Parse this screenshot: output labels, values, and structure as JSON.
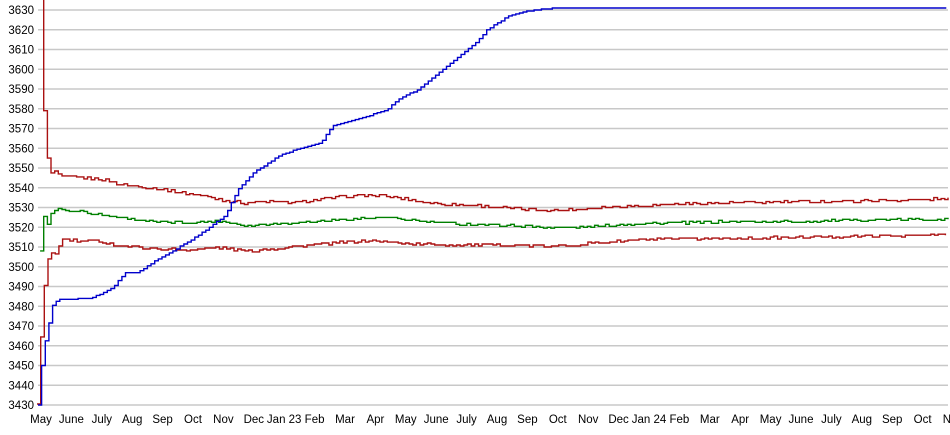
{
  "chart_data": {
    "type": "line",
    "title": "",
    "xlabel": "",
    "ylabel": "",
    "x_axis": {
      "labels": [
        "May",
        "June",
        "July",
        "Aug",
        "Sep",
        "Oct",
        "Nov",
        "Dec",
        "Jan 23",
        "Feb",
        "Mar",
        "Apr",
        "May",
        "June",
        "July",
        "Aug",
        "Sep",
        "Oct",
        "Nov",
        "Dec",
        "Jan 24",
        "Feb",
        "Mar",
        "Apr",
        "May",
        "June",
        "July",
        "Aug",
        "Sep",
        "Oct",
        "Nov"
      ],
      "note": "monthly ticks, May 2022 through Nov 2024, last label clipped at right edge"
    },
    "y_axis": {
      "min": 3430,
      "max": 3630,
      "tick_step": 10,
      "grid": true
    },
    "colors": {
      "grid": "#C8C8C8",
      "blue": "#0000CC",
      "red": "#AA1111",
      "green": "#008000",
      "text": "#000000",
      "background": "#FFFFFF"
    },
    "series": [
      {
        "name": "red-upper-band",
        "color": "#AA1111",
        "noise": 0.7,
        "points": [
          [
            -0.03,
            3658
          ],
          [
            0.0,
            3610
          ],
          [
            0.07,
            3588
          ],
          [
            0.13,
            3563
          ],
          [
            0.2,
            3557
          ],
          [
            0.23,
            3550
          ],
          [
            0.3,
            3549
          ],
          [
            0.36,
            3545.5
          ],
          [
            0.46,
            3548.5
          ],
          [
            0.69,
            3545.5
          ],
          [
            1.38,
            3545
          ],
          [
            2.04,
            3544
          ],
          [
            2.7,
            3541.5
          ],
          [
            3.36,
            3540.5
          ],
          [
            4.01,
            3539
          ],
          [
            4.67,
            3537.5
          ],
          [
            5.23,
            3536
          ],
          [
            5.89,
            3534
          ],
          [
            6.64,
            3532.3
          ],
          [
            7.43,
            3533
          ],
          [
            8.29,
            3532.3
          ],
          [
            9.08,
            3533.8
          ],
          [
            9.84,
            3535.3
          ],
          [
            10.49,
            3536
          ],
          [
            11.15,
            3536
          ],
          [
            11.81,
            3534.6
          ],
          [
            12.47,
            3533
          ],
          [
            13.12,
            3531.6
          ],
          [
            14.01,
            3531.2
          ],
          [
            14.67,
            3530.6
          ],
          [
            15.33,
            3529.6
          ],
          [
            16.18,
            3529
          ],
          [
            16.84,
            3528.5
          ],
          [
            17.57,
            3529
          ],
          [
            18.39,
            3530
          ],
          [
            19.8,
            3531
          ],
          [
            20.92,
            3531.8
          ],
          [
            22.57,
            3532.3
          ],
          [
            24.74,
            3532.8
          ],
          [
            26.94,
            3533.3
          ],
          [
            29.14,
            3534
          ],
          [
            29.85,
            3534.5
          ]
        ]
      },
      {
        "name": "green-mean",
        "color": "#008000",
        "noise": 0.6,
        "points": [
          [
            -0.03,
            3507.5
          ],
          [
            0.03,
            3528
          ],
          [
            0.13,
            3524
          ],
          [
            0.23,
            3521
          ],
          [
            0.39,
            3529.5
          ],
          [
            0.53,
            3528.5
          ],
          [
            0.63,
            3530
          ],
          [
            0.79,
            3528.5
          ],
          [
            1.28,
            3528
          ],
          [
            1.91,
            3526.5
          ],
          [
            2.7,
            3524.7
          ],
          [
            3.68,
            3522.7
          ],
          [
            4.8,
            3522.3
          ],
          [
            5.89,
            3523.2
          ],
          [
            6.78,
            3520.8
          ],
          [
            7.53,
            3521.8
          ],
          [
            8.42,
            3522.3
          ],
          [
            9.51,
            3523.5
          ],
          [
            10.49,
            3524.4
          ],
          [
            11.32,
            3524.9
          ],
          [
            12.7,
            3522.7
          ],
          [
            14.01,
            3521.5
          ],
          [
            15.33,
            3521
          ],
          [
            16.18,
            3520.4
          ],
          [
            16.84,
            3519.8
          ],
          [
            17.57,
            3520
          ],
          [
            18.39,
            3520.5
          ],
          [
            19.8,
            3522
          ],
          [
            21.35,
            3522.3
          ],
          [
            22.57,
            3522.8
          ],
          [
            24.74,
            3522.8
          ],
          [
            26.94,
            3523.7
          ],
          [
            29.14,
            3524
          ],
          [
            29.85,
            3524.2
          ]
        ]
      },
      {
        "name": "red-lower-band",
        "color": "#AA1111",
        "noise": 0.7,
        "points": [
          [
            -0.13,
            3430
          ],
          [
            0.07,
            3486.5
          ],
          [
            0.2,
            3498.5
          ],
          [
            0.23,
            3504
          ],
          [
            0.39,
            3508.5
          ],
          [
            0.46,
            3506
          ],
          [
            0.63,
            3512
          ],
          [
            0.72,
            3514
          ],
          [
            1.28,
            3512.7
          ],
          [
            1.84,
            3513.3
          ],
          [
            2.37,
            3511
          ],
          [
            2.93,
            3510
          ],
          [
            3.91,
            3509
          ],
          [
            4.8,
            3508.5
          ],
          [
            5.79,
            3509.8
          ],
          [
            6.78,
            3507.8
          ],
          [
            7.53,
            3509
          ],
          [
            8.52,
            3510.5
          ],
          [
            10.26,
            3512.7
          ],
          [
            10.72,
            3513.2
          ],
          [
            12.37,
            3511.5
          ],
          [
            14.01,
            3511
          ],
          [
            15.33,
            3511
          ],
          [
            16.84,
            3510.3
          ],
          [
            18.39,
            3512.3
          ],
          [
            20.03,
            3513.8
          ],
          [
            22.66,
            3514.4
          ],
          [
            24.74,
            3514.8
          ],
          [
            26.61,
            3515.3
          ],
          [
            29.14,
            3516
          ],
          [
            29.85,
            3516.3
          ]
        ]
      },
      {
        "name": "blue-cumulative",
        "color": "#0000CC",
        "noise": 0,
        "points": [
          [
            -0.1,
            3430
          ],
          [
            0.0,
            3448
          ],
          [
            0.13,
            3462
          ],
          [
            0.4,
            3482
          ],
          [
            0.63,
            3483.5
          ],
          [
            1.6,
            3484
          ],
          [
            1.94,
            3486
          ],
          [
            2.37,
            3489.5
          ],
          [
            2.6,
            3494
          ],
          [
            2.76,
            3497
          ],
          [
            3.16,
            3497
          ],
          [
            3.75,
            3503
          ],
          [
            4.34,
            3508
          ],
          [
            5.13,
            3515.5
          ],
          [
            5.63,
            3521
          ],
          [
            6.05,
            3526
          ],
          [
            6.48,
            3539
          ],
          [
            6.97,
            3547.5
          ],
          [
            7.86,
            3556.5
          ],
          [
            8.62,
            3560.5
          ],
          [
            9.18,
            3562.5
          ],
          [
            9.6,
            3571.5
          ],
          [
            10.4,
            3574.5
          ],
          [
            11.38,
            3579.5
          ],
          [
            11.8,
            3585.5
          ],
          [
            12.37,
            3589.5
          ],
          [
            12.9,
            3596
          ],
          [
            13.55,
            3604
          ],
          [
            14.34,
            3614
          ],
          [
            14.67,
            3620
          ],
          [
            15.43,
            3627.5
          ],
          [
            16.18,
            3630
          ],
          [
            16.9,
            3631
          ],
          [
            29.85,
            3631
          ]
        ]
      }
    ],
    "layout_hints": {
      "legend": "none",
      "gridlines": "horizontal only",
      "y_labels_left": true
    }
  }
}
